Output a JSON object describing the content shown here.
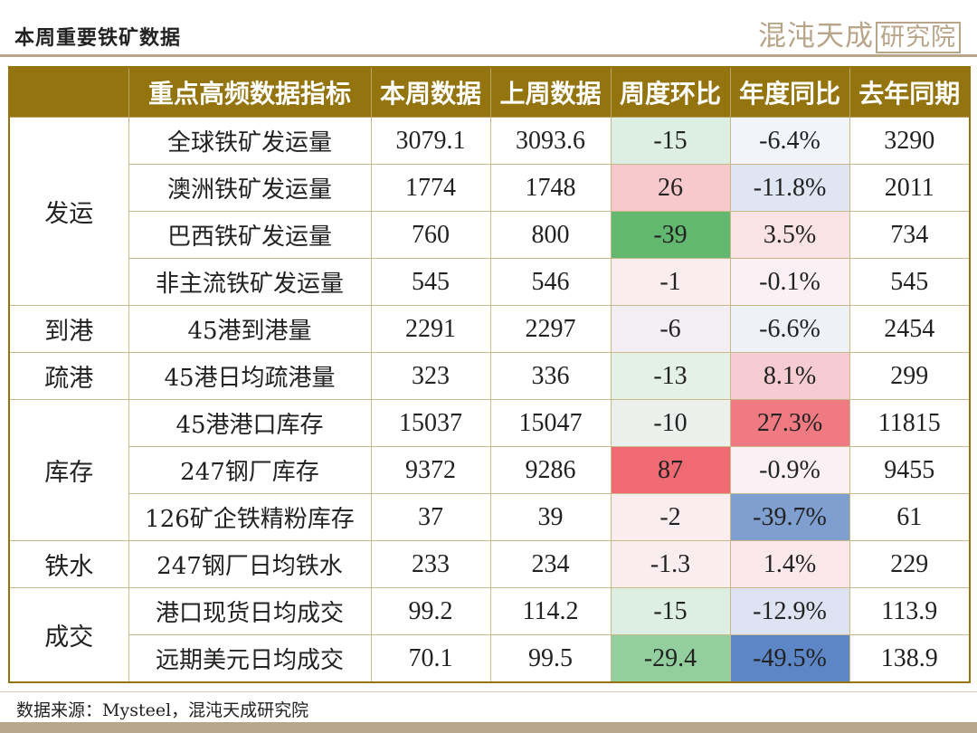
{
  "page": {
    "title": "本周重要铁矿数据",
    "logo_text": "混沌天成",
    "logo_boxed": "研究院",
    "source": "数据来源：Mysteel，混沌天成研究院"
  },
  "table": {
    "headers": [
      "",
      "重点高频数据指标",
      "本周数据",
      "上周数据",
      "周度环比",
      "年度同比",
      "去年同期"
    ],
    "groups": [
      {
        "category": "发运",
        "rows": [
          {
            "indicator": "全球铁矿发运量",
            "this_week": "3079.1",
            "last_week": "3093.6",
            "wow": "-15",
            "yoy": "-6.4%",
            "last_year": "3290",
            "wow_color": "#dcefe2",
            "yoy_color": "#f2f4fb"
          },
          {
            "indicator": "澳洲铁矿发运量",
            "this_week": "1774",
            "last_week": "1748",
            "wow": "26",
            "yoy": "-11.8%",
            "last_year": "2011",
            "wow_color": "#f7c9cd",
            "yoy_color": "#dfe5f2"
          },
          {
            "indicator": "巴西铁矿发运量",
            "this_week": "760",
            "last_week": "800",
            "wow": "-39",
            "yoy": "3.5%",
            "last_year": "734",
            "wow_color": "#62b86f",
            "yoy_color": "#fbe2e5"
          },
          {
            "indicator": "非主流铁矿发运量",
            "this_week": "545",
            "last_week": "546",
            "wow": "-1",
            "yoy": "-0.1%",
            "last_year": "545",
            "wow_color": "#f9edf0",
            "yoy_color": "#fbf0f3"
          }
        ]
      },
      {
        "category": "到港",
        "rows": [
          {
            "indicator": "45港到港量",
            "this_week": "2291",
            "last_week": "2297",
            "wow": "-6",
            "yoy": "-6.6%",
            "last_year": "2454",
            "wow_color": "#f3eef3",
            "yoy_color": "#eff1f9"
          }
        ]
      },
      {
        "category": "疏港",
        "rows": [
          {
            "indicator": "45港日均疏港量",
            "this_week": "323",
            "last_week": "336",
            "wow": "-13",
            "yoy": "8.1%",
            "last_year": "299",
            "wow_color": "#e4f1e7",
            "yoy_color": "#f6cbd1"
          }
        ]
      },
      {
        "category": "库存",
        "rows": [
          {
            "indicator": "45港港口库存",
            "this_week": "15037",
            "last_week": "15047",
            "wow": "-10",
            "yoy": "27.3%",
            "last_year": "11815",
            "wow_color": "#ecf0ec",
            "yoy_color": "#f07a82"
          },
          {
            "indicator": "247钢厂库存",
            "this_week": "9372",
            "last_week": "9286",
            "wow": "87",
            "yoy": "-0.9%",
            "last_year": "9455",
            "wow_color": "#f06a73",
            "yoy_color": "#fbf0f3"
          },
          {
            "indicator": "126矿企铁精粉库存",
            "this_week": "37",
            "last_week": "39",
            "wow": "-2",
            "yoy": "-39.7%",
            "last_year": "61",
            "wow_color": "#f9edf0",
            "yoy_color": "#7f9fd0"
          }
        ]
      },
      {
        "category": "铁水",
        "rows": [
          {
            "indicator": "247钢厂日均铁水",
            "this_week": "233",
            "last_week": "234",
            "wow": "-1.3",
            "yoy": "1.4%",
            "last_year": "229",
            "wow_color": "#f9edf0",
            "yoy_color": "#fbe8ec"
          }
        ]
      },
      {
        "category": "成交",
        "rows": [
          {
            "indicator": "港口现货日均成交",
            "this_week": "99.2",
            "last_week": "114.2",
            "wow": "-15",
            "yoy": "-12.9%",
            "last_year": "113.9",
            "wow_color": "#dcefe2",
            "yoy_color": "#dde3f2"
          },
          {
            "indicator": "远期美元日均成交",
            "this_week": "70.1",
            "last_week": "99.5",
            "wow": "-29.4",
            "yoy": "-49.5%",
            "last_year": "138.9",
            "wow_color": "#93cf9e",
            "yoy_color": "#5d86c6"
          }
        ]
      }
    ]
  }
}
